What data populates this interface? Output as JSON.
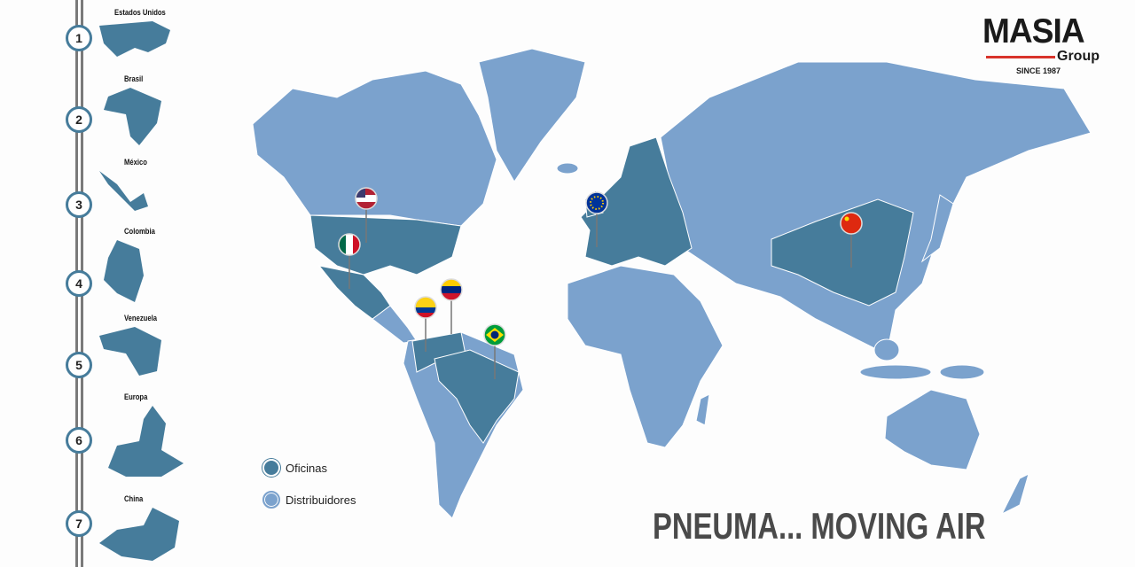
{
  "brand": {
    "name": "MASIA",
    "sub": "Group",
    "since": "SINCE 1987",
    "accent": "#d9342b"
  },
  "colors": {
    "office": "#467c9b",
    "distributor": "#7ba2cd"
  },
  "timeline": [
    {
      "num": "1",
      "label": "Estados Unidos"
    },
    {
      "num": "2",
      "label": "Brasil"
    },
    {
      "num": "3",
      "label": "México"
    },
    {
      "num": "4",
      "label": "Colombia"
    },
    {
      "num": "5",
      "label": "Venezuela"
    },
    {
      "num": "6",
      "label": "Europa"
    },
    {
      "num": "7",
      "label": "China"
    }
  ],
  "legend": {
    "office": "Oficinas",
    "distributor": "Distribuidores"
  },
  "pins": [
    {
      "country": "Estados Unidos",
      "flag": "us-flag-icon"
    },
    {
      "country": "México",
      "flag": "mexico-flag-icon"
    },
    {
      "country": "Venezuela",
      "flag": "venezuela-flag-icon"
    },
    {
      "country": "Colombia",
      "flag": "colombia-flag-icon"
    },
    {
      "country": "Brasil",
      "flag": "brazil-flag-icon"
    },
    {
      "country": "Europa",
      "flag": "eu-flag-icon"
    },
    {
      "country": "China",
      "flag": "china-flag-icon"
    }
  ],
  "slogan": "PNEUMA... MOVING AIR"
}
